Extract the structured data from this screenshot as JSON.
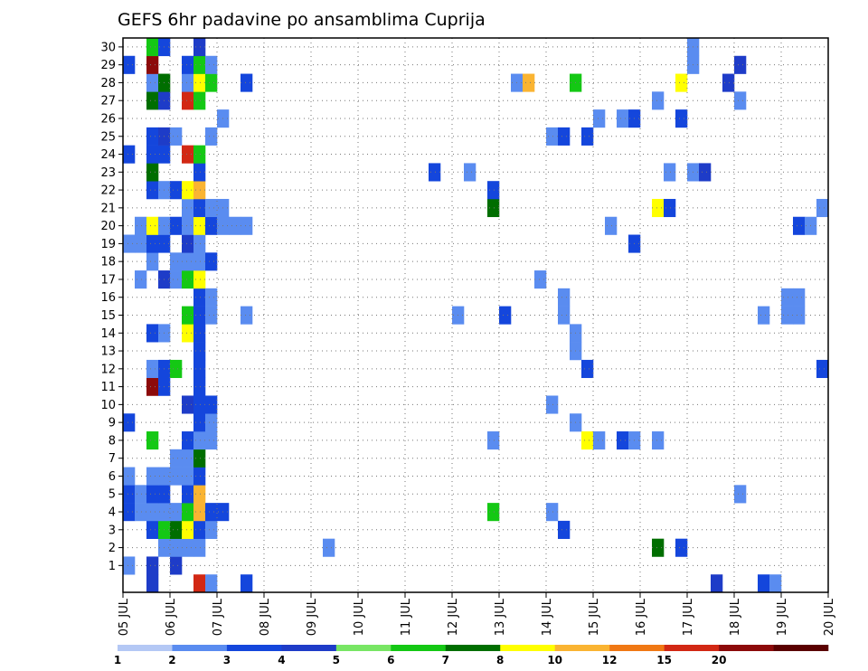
{
  "chart_data": {
    "type": "heatmap",
    "title": "GEFS 6hr padavine po ansamblima Cuprija",
    "xlabel": "",
    "ylabel": "",
    "x_ticks": [
      "05 JUL",
      "06 JUL",
      "07 JUL",
      "08 JUL",
      "09 JUL",
      "10 JUL",
      "11 JUL",
      "12 JUL",
      "13 JUL",
      "14 JUL",
      "15 JUL",
      "16 JUL",
      "17 JUL",
      "18 JUL",
      "19 JUL",
      "20 JUL"
    ],
    "y_ticks": [
      "1",
      "2",
      "3",
      "4",
      "5",
      "6",
      "7",
      "8",
      "9",
      "10",
      "11",
      "12",
      "13",
      "14",
      "15",
      "16",
      "17",
      "18",
      "19",
      "20",
      "21",
      "22",
      "23",
      "24",
      "25",
      "26",
      "27",
      "28",
      "29",
      "30"
    ],
    "time_steps_per_day": 4,
    "ylim": [
      0,
      30
    ],
    "grid": true,
    "colorbar": {
      "placement": "bottom",
      "labels": [
        "1",
        "2",
        "3",
        "4",
        "5",
        "6",
        "7",
        "8",
        "10",
        "12",
        "15",
        "20"
      ],
      "colors": [
        "#b4c8f5",
        "#5a8cf0",
        "#1446dc",
        "#1e3cc8",
        "#78e664",
        "#14c814",
        "#006e00",
        "#ffff00",
        "#fab432",
        "#f07814",
        "#d22814",
        "#8c0a0a",
        "#5a0000"
      ]
    },
    "cells": [
      [
        0,
        1,
        1
      ],
      [
        2,
        1,
        3
      ],
      [
        4,
        1,
        3
      ],
      [
        3,
        2,
        1
      ],
      [
        4,
        2,
        1
      ],
      [
        5,
        2,
        1
      ],
      [
        6,
        2,
        1
      ],
      [
        17,
        2,
        1
      ],
      [
        45,
        2,
        6
      ],
      [
        47,
        2,
        2
      ],
      [
        2,
        3,
        2
      ],
      [
        3,
        3,
        5
      ],
      [
        4,
        3,
        6
      ],
      [
        5,
        3,
        7
      ],
      [
        6,
        3,
        2
      ],
      [
        7,
        3,
        1
      ],
      [
        37,
        3,
        2
      ],
      [
        0,
        4,
        2
      ],
      [
        1,
        4,
        1
      ],
      [
        2,
        4,
        1
      ],
      [
        3,
        4,
        1
      ],
      [
        4,
        4,
        1
      ],
      [
        5,
        4,
        5
      ],
      [
        6,
        4,
        8
      ],
      [
        7,
        4,
        2
      ],
      [
        8,
        4,
        2
      ],
      [
        31,
        4,
        5
      ],
      [
        36,
        4,
        1
      ],
      [
        0,
        5,
        2
      ],
      [
        1,
        5,
        1
      ],
      [
        2,
        5,
        2
      ],
      [
        3,
        5,
        2
      ],
      [
        5,
        5,
        2
      ],
      [
        6,
        5,
        8
      ],
      [
        52,
        5,
        1
      ],
      [
        0,
        6,
        1
      ],
      [
        2,
        6,
        1
      ],
      [
        3,
        6,
        1
      ],
      [
        4,
        6,
        1
      ],
      [
        5,
        6,
        1
      ],
      [
        6,
        6,
        2
      ],
      [
        4,
        7,
        1
      ],
      [
        5,
        7,
        1
      ],
      [
        6,
        7,
        6
      ],
      [
        2,
        8,
        5
      ],
      [
        5,
        8,
        2
      ],
      [
        6,
        8,
        1
      ],
      [
        7,
        8,
        1
      ],
      [
        31,
        8,
        1
      ],
      [
        39,
        8,
        7
      ],
      [
        40,
        8,
        1
      ],
      [
        42,
        8,
        2
      ],
      [
        43,
        8,
        1
      ],
      [
        45,
        8,
        1
      ],
      [
        0,
        9,
        2
      ],
      [
        6,
        9,
        2
      ],
      [
        7,
        9,
        1
      ],
      [
        38,
        9,
        1
      ],
      [
        5,
        10,
        3
      ],
      [
        6,
        10,
        2
      ],
      [
        7,
        10,
        2
      ],
      [
        36,
        10,
        1
      ],
      [
        2,
        11,
        11
      ],
      [
        3,
        11,
        2
      ],
      [
        6,
        11,
        2
      ],
      [
        2,
        12,
        1
      ],
      [
        3,
        12,
        2
      ],
      [
        4,
        12,
        5
      ],
      [
        6,
        12,
        2
      ],
      [
        39,
        12,
        2
      ],
      [
        59,
        12,
        2
      ],
      [
        6,
        13,
        2
      ],
      [
        38,
        13,
        1
      ],
      [
        2,
        14,
        2
      ],
      [
        3,
        14,
        1
      ],
      [
        5,
        14,
        7
      ],
      [
        6,
        14,
        2
      ],
      [
        38,
        14,
        1
      ],
      [
        5,
        15,
        5
      ],
      [
        6,
        15,
        2
      ],
      [
        7,
        15,
        1
      ],
      [
        10,
        15,
        1
      ],
      [
        28,
        15,
        1
      ],
      [
        32,
        15,
        2
      ],
      [
        37,
        15,
        1
      ],
      [
        54,
        15,
        1
      ],
      [
        56,
        15,
        1
      ],
      [
        57,
        15,
        1
      ],
      [
        6,
        16,
        2
      ],
      [
        7,
        16,
        1
      ],
      [
        37,
        16,
        1
      ],
      [
        56,
        16,
        1
      ],
      [
        57,
        16,
        1
      ],
      [
        1,
        17,
        1
      ],
      [
        3,
        17,
        3
      ],
      [
        4,
        17,
        1
      ],
      [
        5,
        17,
        5
      ],
      [
        6,
        17,
        7
      ],
      [
        35,
        17,
        1
      ],
      [
        2,
        18,
        1
      ],
      [
        4,
        18,
        1
      ],
      [
        5,
        18,
        1
      ],
      [
        6,
        18,
        1
      ],
      [
        7,
        18,
        2
      ],
      [
        0,
        19,
        1
      ],
      [
        1,
        19,
        1
      ],
      [
        2,
        19,
        2
      ],
      [
        3,
        19,
        2
      ],
      [
        5,
        19,
        3
      ],
      [
        6,
        19,
        1
      ],
      [
        43,
        19,
        2
      ],
      [
        1,
        20,
        1
      ],
      [
        2,
        20,
        7
      ],
      [
        3,
        20,
        1
      ],
      [
        4,
        20,
        2
      ],
      [
        5,
        20,
        1
      ],
      [
        6,
        20,
        7
      ],
      [
        7,
        20,
        2
      ],
      [
        8,
        20,
        1
      ],
      [
        9,
        20,
        1
      ],
      [
        10,
        20,
        1
      ],
      [
        41,
        20,
        1
      ],
      [
        57,
        20,
        2
      ],
      [
        58,
        20,
        1
      ],
      [
        5,
        21,
        1
      ],
      [
        6,
        21,
        2
      ],
      [
        7,
        21,
        1
      ],
      [
        8,
        21,
        1
      ],
      [
        31,
        21,
        6
      ],
      [
        45,
        21,
        7
      ],
      [
        46,
        21,
        2
      ],
      [
        59,
        21,
        1
      ],
      [
        2,
        22,
        2
      ],
      [
        3,
        22,
        1
      ],
      [
        4,
        22,
        2
      ],
      [
        5,
        22,
        7
      ],
      [
        6,
        22,
        8
      ],
      [
        31,
        22,
        2
      ],
      [
        2,
        23,
        6
      ],
      [
        6,
        23,
        2
      ],
      [
        26,
        23,
        2
      ],
      [
        29,
        23,
        1
      ],
      [
        46,
        23,
        1
      ],
      [
        48,
        23,
        1
      ],
      [
        49,
        23,
        3
      ],
      [
        0,
        24,
        2
      ],
      [
        2,
        24,
        2
      ],
      [
        3,
        24,
        2
      ],
      [
        5,
        24,
        10
      ],
      [
        6,
        24,
        5
      ],
      [
        2,
        25,
        2
      ],
      [
        3,
        25,
        3
      ],
      [
        4,
        25,
        1
      ],
      [
        7,
        25,
        1
      ],
      [
        36,
        25,
        1
      ],
      [
        37,
        25,
        2
      ],
      [
        39,
        25,
        2
      ],
      [
        8,
        26,
        1
      ],
      [
        40,
        26,
        1
      ],
      [
        42,
        26,
        1
      ],
      [
        43,
        26,
        2
      ],
      [
        47,
        26,
        2
      ],
      [
        2,
        27,
        6
      ],
      [
        3,
        27,
        3
      ],
      [
        5,
        27,
        10
      ],
      [
        6,
        27,
        5
      ],
      [
        45,
        27,
        1
      ],
      [
        52,
        27,
        1
      ],
      [
        2,
        28,
        1
      ],
      [
        3,
        28,
        6
      ],
      [
        5,
        28,
        1
      ],
      [
        6,
        28,
        7
      ],
      [
        7,
        28,
        5
      ],
      [
        10,
        28,
        2
      ],
      [
        33,
        28,
        1
      ],
      [
        34,
        28,
        8
      ],
      [
        38,
        28,
        5
      ],
      [
        47,
        28,
        7
      ],
      [
        51,
        28,
        3
      ],
      [
        0,
        29,
        2
      ],
      [
        2,
        29,
        11
      ],
      [
        5,
        29,
        2
      ],
      [
        6,
        29,
        5
      ],
      [
        7,
        29,
        1
      ],
      [
        48,
        29,
        1
      ],
      [
        52,
        29,
        3
      ],
      [
        2,
        30,
        5
      ],
      [
        3,
        30,
        2
      ],
      [
        6,
        30,
        3
      ],
      [
        48,
        30,
        1
      ],
      [
        2,
        0,
        3
      ],
      [
        6,
        0,
        10
      ],
      [
        7,
        0,
        1
      ],
      [
        10,
        0,
        2
      ],
      [
        50,
        0,
        3
      ],
      [
        54,
        0,
        2
      ],
      [
        55,
        0,
        1
      ]
    ]
  }
}
